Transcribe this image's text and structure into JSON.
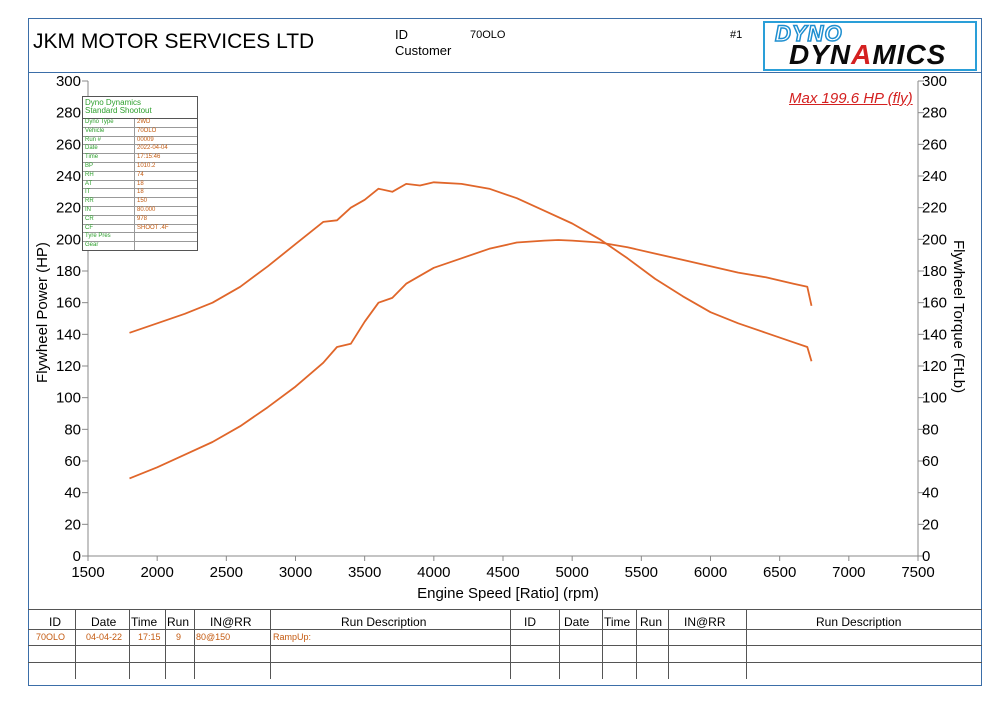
{
  "header": {
    "company": "JKM MOTOR SERVICES LTD",
    "id_label": "ID",
    "id_value": "70OLO",
    "customer_label": "Customer",
    "run_no": "#1",
    "logo_top": "DYNO",
    "logo_bottom_a": "DYN",
    "logo_bottom_b": "A",
    "logo_bottom_c": "MICS"
  },
  "info_table": {
    "title_line1": "Dyno Dynamics",
    "title_line2": "Standard Shootout",
    "rows": [
      {
        "k": "Dyno Type",
        "v": "2WD"
      },
      {
        "k": "Vehicle",
        "v": "70OLO"
      },
      {
        "k": "Run #",
        "v": "00009"
      },
      {
        "k": "Date",
        "v": "2022-04-04"
      },
      {
        "k": "Time",
        "v": "17:15:46"
      },
      {
        "k": "BP",
        "v": "1010.2"
      },
      {
        "k": "RH",
        "v": "74"
      },
      {
        "k": "AT",
        "v": "18"
      },
      {
        "k": "IT",
        "v": "18"
      },
      {
        "k": "RR",
        "v": "150"
      },
      {
        "k": "IN",
        "v": "80.000"
      },
      {
        "k": "CR",
        "v": "978"
      },
      {
        "k": "CF",
        "v": "SHOOT .4F"
      },
      {
        "k": "Tyre Pres",
        "v": ""
      },
      {
        "k": "Gear",
        "v": ""
      }
    ]
  },
  "max_label": "Max 199.6 HP (fly)",
  "colors": {
    "curve": "#e0662a",
    "frame": "#3b6ea8",
    "label_green": "#2da02d",
    "label_orange": "#c45a10",
    "max_red": "#d42020"
  },
  "chart_data": {
    "type": "line",
    "xlabel": "Engine Speed [Ratio] (rpm)",
    "ylabel": "Flywheel Power (HP)",
    "ylabel_right": "Flywheel Torque (FtLb)",
    "xlim": [
      1500,
      7500
    ],
    "ylim": [
      0,
      300
    ],
    "x_ticks": [
      1500,
      2000,
      2500,
      3000,
      3500,
      4000,
      4500,
      5000,
      5500,
      6000,
      6500,
      7000,
      7500
    ],
    "y_ticks": [
      0,
      20,
      40,
      60,
      80,
      100,
      120,
      140,
      160,
      180,
      200,
      220,
      240,
      260,
      280,
      300
    ],
    "grid": false,
    "series": [
      {
        "name": "",
        "axis": "left",
        "x": [
          1800,
          2000,
          2200,
          2400,
          2600,
          2800,
          3000,
          3200,
          3300,
          3400,
          3500,
          3600,
          3700,
          3800,
          4000,
          4200,
          4400,
          4600,
          4800,
          4900,
          5000,
          5200,
          5400,
          5600,
          5800,
          6000,
          6200,
          6400,
          6600,
          6700,
          6730
        ],
        "y": [
          49,
          56,
          64,
          72,
          82,
          94,
          107,
          122,
          132,
          134,
          148,
          160,
          163,
          172,
          182,
          188,
          194,
          198,
          199.2,
          199.6,
          199.2,
          198,
          195,
          191,
          187,
          183,
          179,
          176,
          172,
          170,
          158
        ]
      },
      {
        "name": "",
        "axis": "right",
        "x": [
          1800,
          2000,
          2200,
          2400,
          2600,
          2800,
          3000,
          3200,
          3300,
          3400,
          3500,
          3600,
          3700,
          3800,
          3900,
          4000,
          4200,
          4400,
          4600,
          4800,
          5000,
          5200,
          5400,
          5600,
          5800,
          6000,
          6200,
          6400,
          6600,
          6700,
          6730
        ],
        "y": [
          141,
          147,
          153,
          160,
          170,
          183,
          197,
          211,
          212,
          220,
          225,
          232,
          230,
          235,
          234,
          236,
          235,
          232,
          226,
          218,
          210,
          200,
          188,
          175,
          164,
          154,
          147,
          141,
          135,
          132,
          123
        ]
      }
    ]
  },
  "bottom_table": {
    "headers": [
      "ID",
      "Date",
      "Time",
      "Run",
      "IN@RR",
      "Run Description"
    ],
    "row": {
      "id": "70OLO",
      "date": "04-04-22",
      "time": "17:15",
      "run": "9",
      "inrr": "80@150",
      "desc": "RampUp:"
    }
  }
}
